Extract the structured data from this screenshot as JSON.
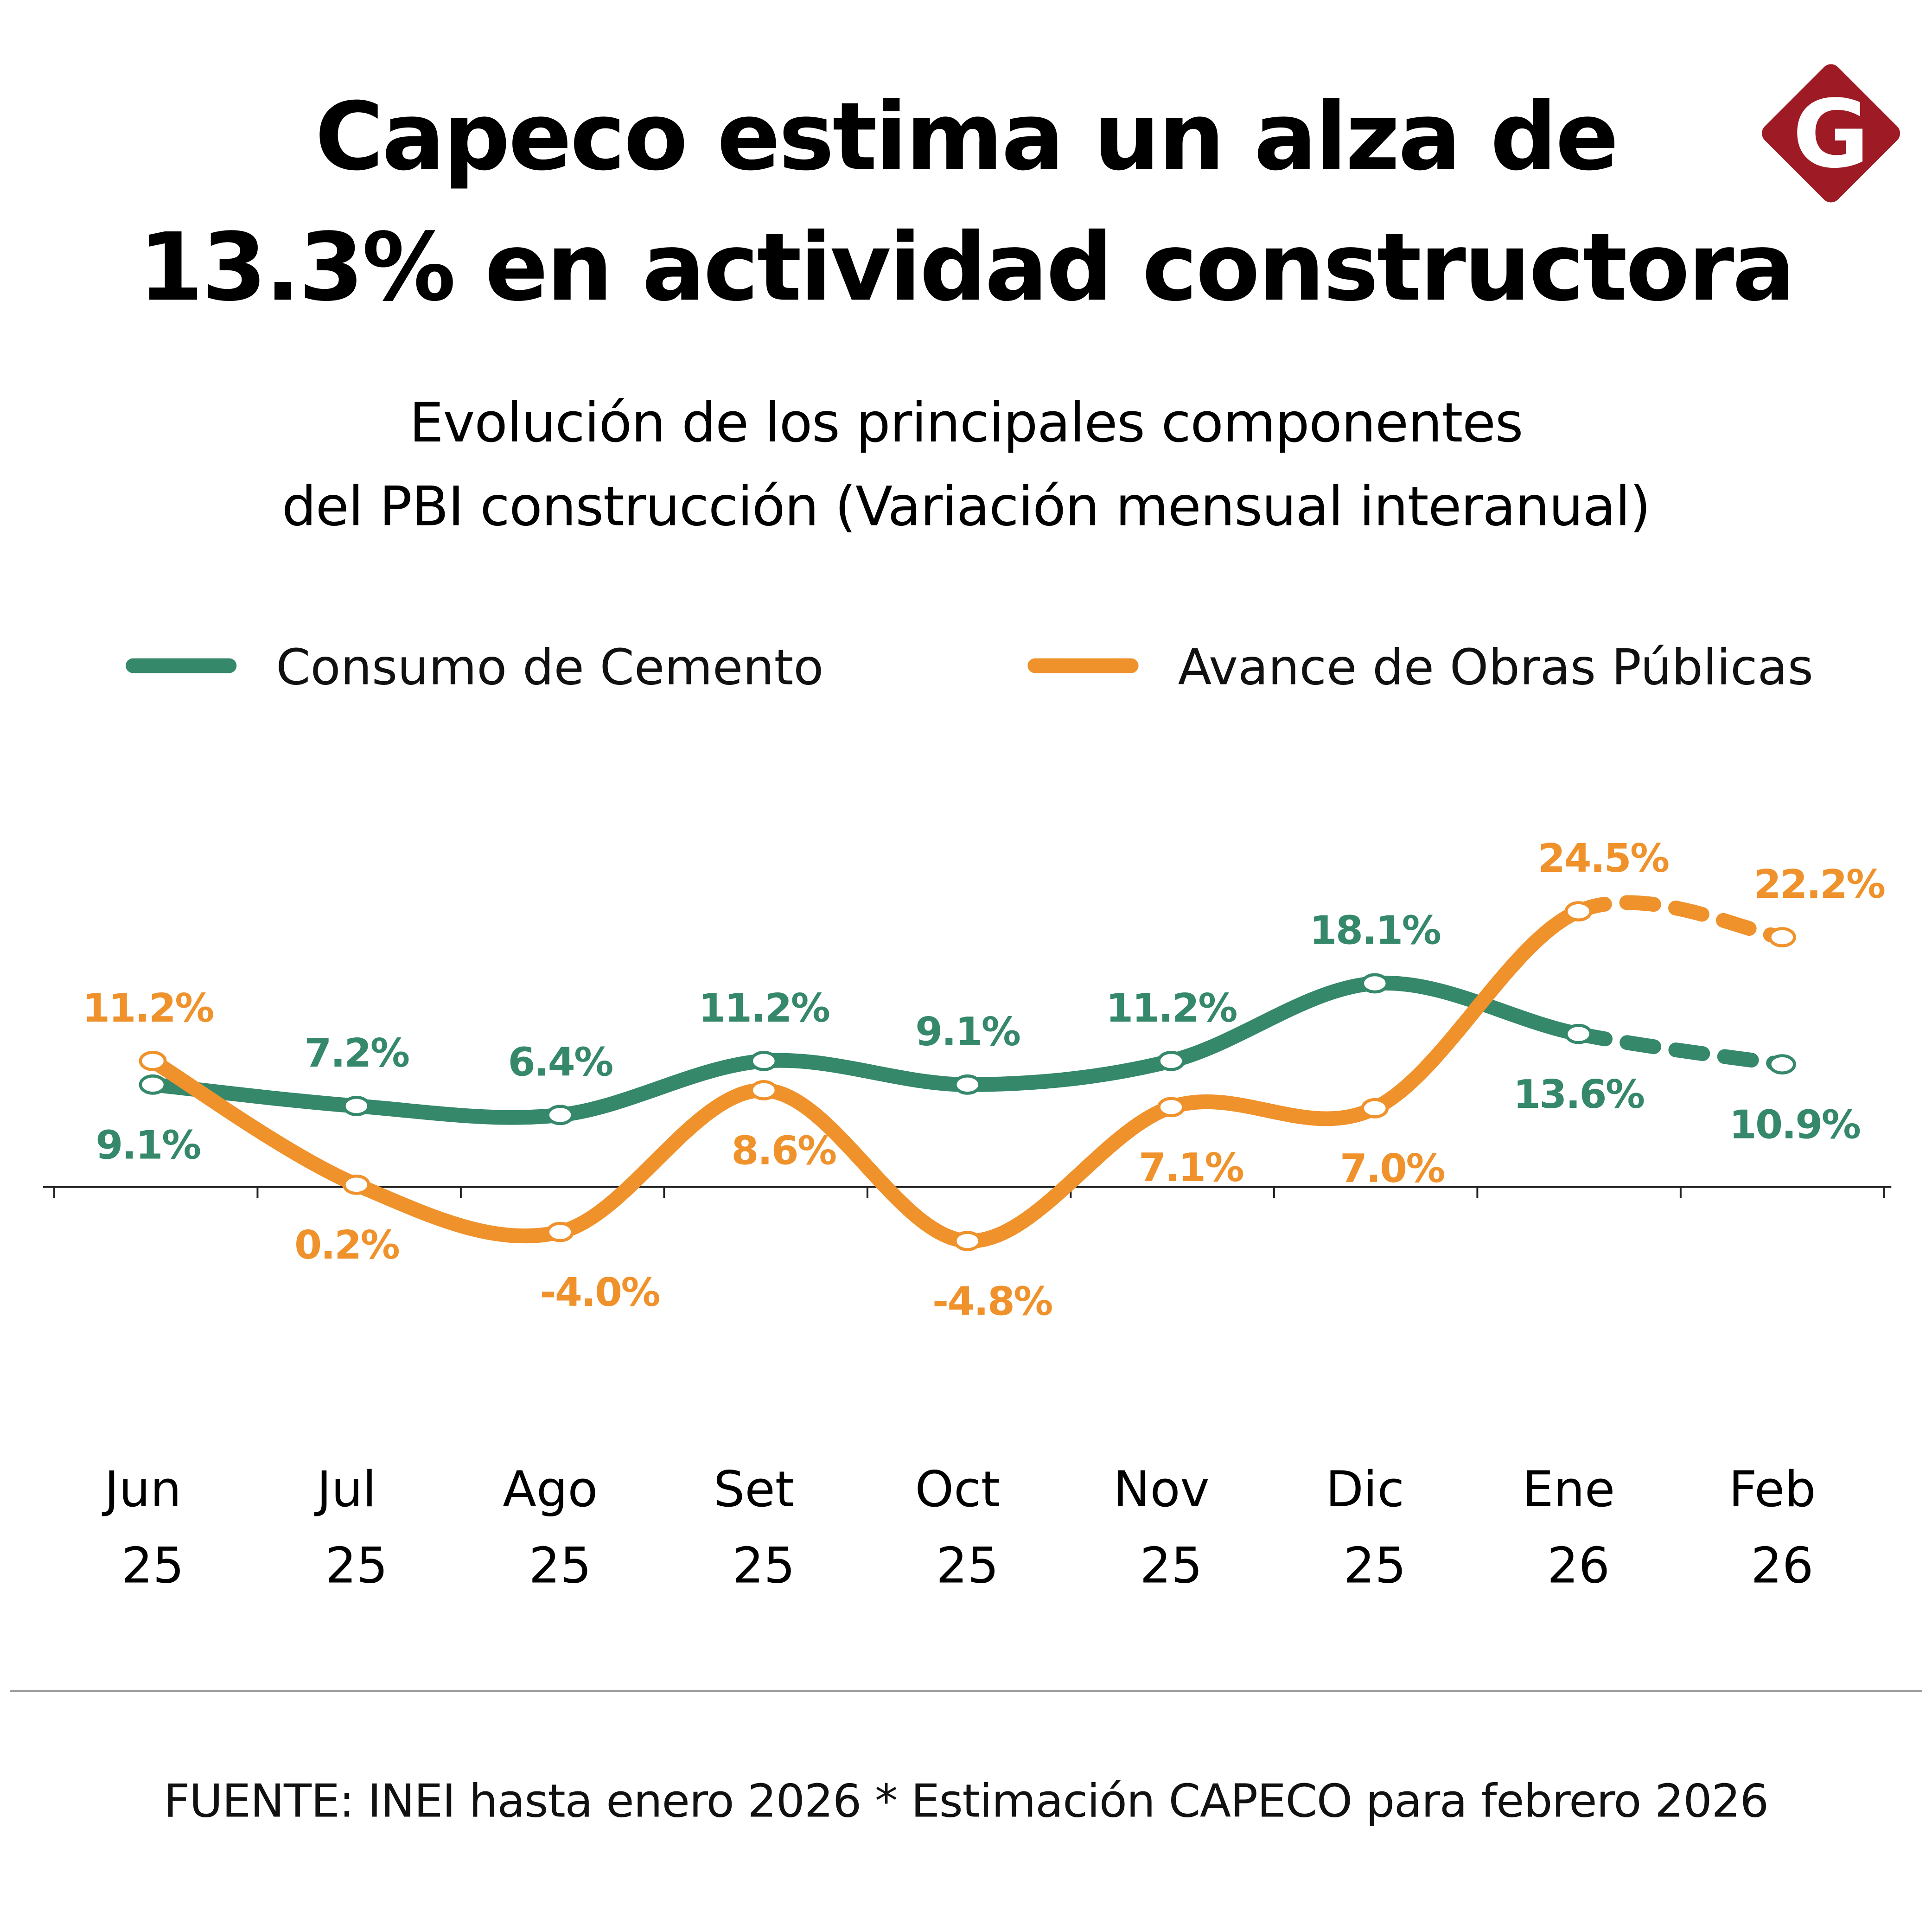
{
  "title": {
    "line1": "Capeco estima un alza de",
    "line2": "13.3% en actividad constructora"
  },
  "subtitle": {
    "line1": "Evolución de los principales componentes",
    "line2": "del PBI construcción (Variación mensual interanual)"
  },
  "logo": {
    "letter": "G",
    "color": "#9e1b25"
  },
  "source": "FUENTE: INEI hasta enero 2026 * Estimación CAPECO para febrero 2026",
  "chart_data": {
    "type": "line",
    "categories": [
      [
        "Jun",
        "25"
      ],
      [
        "Jul",
        "25"
      ],
      [
        "Ago",
        "25"
      ],
      [
        "Set",
        "25"
      ],
      [
        "Oct",
        "25"
      ],
      [
        "Nov",
        "25"
      ],
      [
        "Dic",
        "25"
      ],
      [
        "Ene",
        "26"
      ],
      [
        "Feb",
        "26"
      ]
    ],
    "series": [
      {
        "name": "Consumo de Cemento",
        "color": "#35886a",
        "values": [
          9.1,
          7.2,
          6.4,
          11.2,
          9.1,
          11.2,
          18.1,
          13.6,
          10.9
        ],
        "labels": [
          "9.1%",
          "7.2%",
          "6.4%",
          "11.2%",
          "9.1%",
          "11.2%",
          "18.1%",
          "13.6%",
          "10.9%"
        ]
      },
      {
        "name": "Avance de Obras Públicas",
        "color": "#f0922c",
        "values": [
          11.2,
          0.2,
          -4.0,
          8.6,
          -4.8,
          7.1,
          7.0,
          24.5,
          22.2
        ],
        "labels": [
          "11.2%",
          "0.2%",
          "-4.0%",
          "8.6%",
          "-4.8%",
          "7.1%",
          "7.0%",
          "24.5%",
          "22.2%"
        ]
      }
    ],
    "estimated_from_index": 7,
    "legend_position": "top",
    "grid": false,
    "xlabel": "",
    "ylabel": ""
  }
}
